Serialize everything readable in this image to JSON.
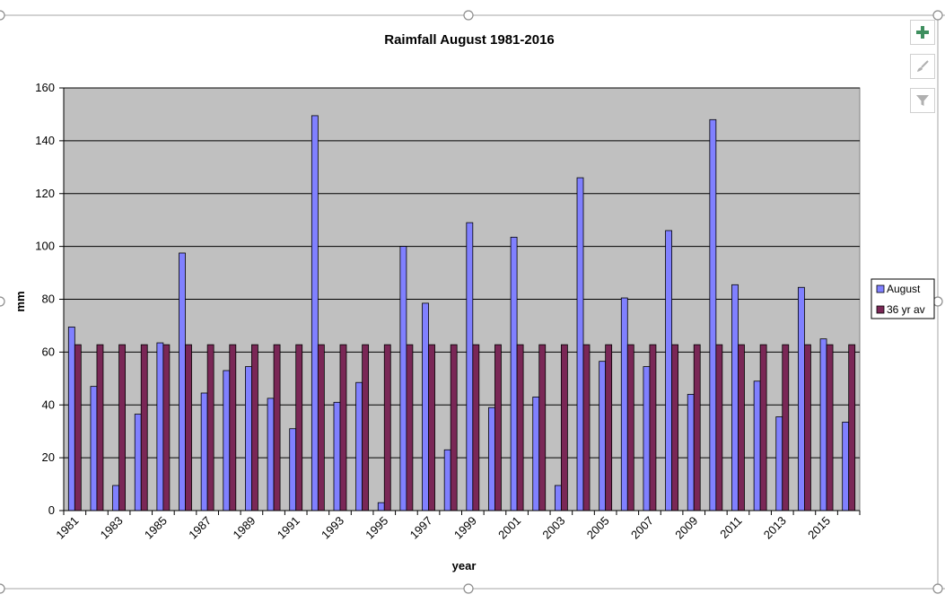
{
  "chart_data": {
    "type": "bar",
    "title": "Raimfall August 1981-2016",
    "xlabel": "year",
    "ylabel": "mm",
    "ylim": [
      0,
      160
    ],
    "yticks": [
      0,
      20,
      40,
      60,
      80,
      100,
      120,
      140,
      160
    ],
    "grid": true,
    "legend_position": "right",
    "categories": [
      "1981",
      "1982",
      "1983",
      "1984",
      "1985",
      "1986",
      "1987",
      "1988",
      "1989",
      "1990",
      "1991",
      "1992",
      "1993",
      "1994",
      "1995",
      "1996",
      "1997",
      "1998",
      "1999",
      "2000",
      "2001",
      "2002",
      "2003",
      "2004",
      "2005",
      "2006",
      "2007",
      "2008",
      "2009",
      "2010",
      "2011",
      "2012",
      "2013",
      "2014",
      "2015",
      "2016"
    ],
    "tick_labels": [
      "1981",
      "1983",
      "1985",
      "1987",
      "1989",
      "1991",
      "1993",
      "1995",
      "1997",
      "1999",
      "2001",
      "2003",
      "2005",
      "2007",
      "2009",
      "2011",
      "2013",
      "2015"
    ],
    "series": [
      {
        "name": "August",
        "color": "#8080ff",
        "values": [
          69.5,
          47,
          9.5,
          36.5,
          63.5,
          97.5,
          44.5,
          53,
          54.5,
          42.5,
          31,
          149.5,
          41,
          48.5,
          3,
          100,
          78.5,
          23,
          109,
          39,
          103.5,
          43,
          9.5,
          126,
          56.5,
          80.5,
          54.5,
          106,
          44,
          148,
          85.5,
          49,
          35.5,
          84.5,
          65,
          33.5
        ]
      },
      {
        "name": "36 yr av",
        "color": "#7a2756",
        "values": [
          62.8,
          62.8,
          62.8,
          62.8,
          62.8,
          62.8,
          62.8,
          62.8,
          62.8,
          62.8,
          62.8,
          62.8,
          62.8,
          62.8,
          62.8,
          62.8,
          62.8,
          62.8,
          62.8,
          62.8,
          62.8,
          62.8,
          62.8,
          62.8,
          62.8,
          62.8,
          62.8,
          62.8,
          62.8,
          62.8,
          62.8,
          62.8,
          62.8,
          62.8,
          62.8,
          62.8
        ]
      }
    ],
    "plot_background": "#c0c0c0"
  },
  "toolbar": {
    "icons": [
      "plus-icon",
      "brush-icon",
      "filter-icon"
    ]
  }
}
